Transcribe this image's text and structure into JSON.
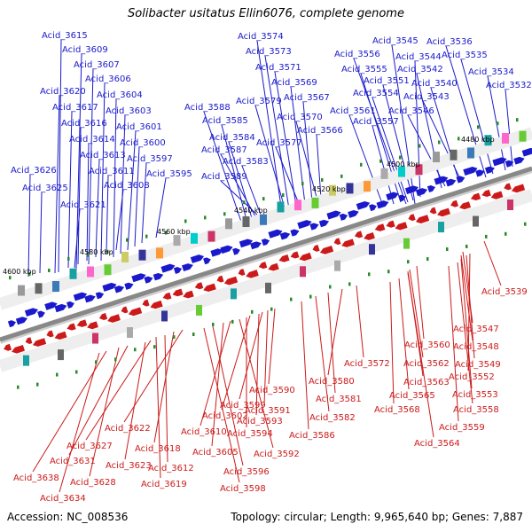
{
  "title": "Solibacter usitatus Ellin6076, complete genome",
  "footer": {
    "accession": "Accession: NC_008536",
    "summary": "Topology: circular; Length: 9,965,640 bp; Genes: 7,887"
  },
  "colors": {
    "forward": "#1a1acc",
    "reverse": "#cc1a1a",
    "backbone": "#888888",
    "rna_tick": "#2a8a2a"
  },
  "scale_labels": [
    "4480 kbp",
    "4500 kbp",
    "4520 kbp",
    "4540 kbp",
    "4560 kbp",
    "4580 kbp",
    "4600 kbp"
  ],
  "top_labels": [
    "Acid_3615",
    "Acid_3609",
    "Acid_3607",
    "Acid_3606",
    "Acid_3604",
    "Acid_3603",
    "Acid_3601",
    "Acid_3600",
    "Acid_3597",
    "Acid_3595",
    "Acid_3620",
    "Acid_3617",
    "Acid_3616",
    "Acid_3614",
    "Acid_3613",
    "Acid_3611",
    "Acid_3608",
    "Acid_3626",
    "Acid_3625",
    "Acid_3621",
    "Acid_3574",
    "Acid_3573",
    "Acid_3571",
    "Acid_3569",
    "Acid_3567",
    "Acid_3570",
    "Acid_3566",
    "Acid_3577",
    "Acid_3579",
    "Acid_3588",
    "Acid_3585",
    "Acid_3584",
    "Acid_3587",
    "Acid_3583",
    "Acid_3589",
    "Acid_3545",
    "Acid_3556",
    "Acid_3544",
    "Acid_3555",
    "Acid_3551",
    "Acid_3554",
    "Acid_3561",
    "Acid_3557",
    "Acid_3536",
    "Acid_3535",
    "Acid_3542",
    "Acid_3534",
    "Acid_3540",
    "Acid_3532",
    "Acid_3543",
    "Acid_3546"
  ],
  "bottom_labels": [
    "Acid_3539",
    "Acid_3547",
    "Acid_3548",
    "Acid_3560",
    "Acid_3549",
    "Acid_3562",
    "Acid_3552",
    "Acid_3563",
    "Acid_3553",
    "Acid_3565",
    "Acid_3558",
    "Acid_3568",
    "Acid_3559",
    "Acid_3564",
    "Acid_3572",
    "Acid_3580",
    "Acid_3581",
    "Acid_3582",
    "Acid_3586",
    "Acid_3590",
    "Acid_3599",
    "Acid_3591",
    "Acid_3593",
    "Acid_3602",
    "Acid_3594",
    "Acid_3592",
    "Acid_3610",
    "Acid_3605",
    "Acid_3596",
    "Acid_3598",
    "Acid_3622",
    "Acid_3618",
    "Acid_3612",
    "Acid_3619",
    "Acid_3627",
    "Acid_3623",
    "Acid_3631",
    "Acid_3628",
    "Acid_3638",
    "Acid_3634"
  ]
}
